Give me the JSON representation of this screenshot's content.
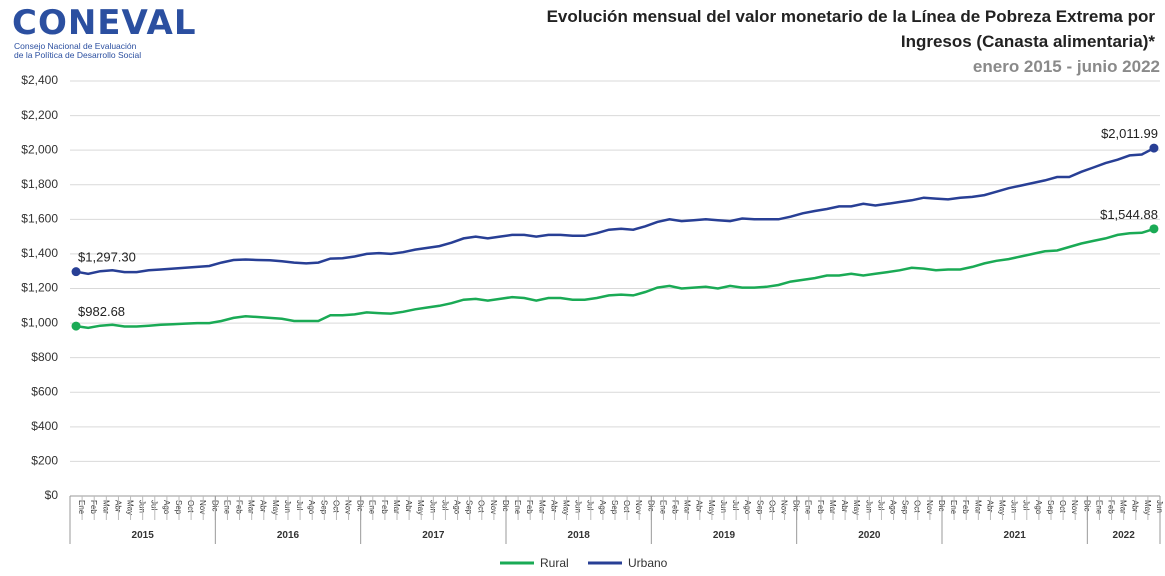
{
  "logo": {
    "name": "CONEVAL",
    "line1": "Consejo Nacional de Evaluación",
    "line2": "de la Política de Desarrollo Social"
  },
  "chart_data": {
    "type": "line",
    "title": "Evolución mensual del valor monetario de la Línea de Pobreza Extrema por",
    "title2": "Ingresos (Canasta alimentaria)*",
    "subtitle": "enero 2015 - junio 2022",
    "categories": [
      "Ene",
      "Feb",
      "Mar",
      "Abr",
      "May",
      "Jun",
      "Jul",
      "Ago",
      "Sep",
      "Oct",
      "Nov",
      "Dic",
      "Ene",
      "Feb",
      "Mar",
      "Abr",
      "May",
      "Jun",
      "Jul",
      "Ago",
      "Sep",
      "Oct",
      "Nov",
      "Dic",
      "Ene",
      "Feb",
      "Mar",
      "Abr",
      "May",
      "Jun",
      "Jul",
      "Ago",
      "Sep",
      "Oct",
      "Nov",
      "Dic",
      "Ene",
      "Feb",
      "Mar",
      "Abr",
      "May",
      "Jun",
      "Jul",
      "Ago",
      "Sep",
      "Oct",
      "Nov",
      "Dic",
      "Ene",
      "Feb",
      "Mar",
      "Abr",
      "May",
      "Jun",
      "Jul",
      "Ago",
      "Sep",
      "Oct",
      "Nov",
      "Dic",
      "Ene",
      "Feb",
      "Mar",
      "Abr",
      "May",
      "Jun",
      "Jul",
      "Ago",
      "Sep",
      "Oct",
      "Nov",
      "Dic",
      "Ene",
      "Feb",
      "Mar",
      "Abr",
      "May",
      "Jun",
      "Jul",
      "Ago",
      "Sep",
      "Oct",
      "Nov",
      "Dic",
      "Ene",
      "Feb",
      "Mar",
      "Abr",
      "May",
      "Jun"
    ],
    "years": [
      "2015",
      "2016",
      "2017",
      "2018",
      "2019",
      "2020",
      "2021",
      "2022"
    ],
    "series": [
      {
        "name": "Rural",
        "color": "#1aaa55",
        "values": [
          982.68,
          972,
          985,
          990,
          980,
          980,
          985,
          990,
          993,
          997,
          1000,
          1000,
          1012,
          1030,
          1040,
          1035,
          1030,
          1025,
          1012,
          1012,
          1012,
          1045,
          1045,
          1050,
          1062,
          1058,
          1055,
          1065,
          1080,
          1090,
          1100,
          1115,
          1135,
          1140,
          1130,
          1140,
          1150,
          1145,
          1130,
          1145,
          1145,
          1135,
          1135,
          1145,
          1160,
          1165,
          1160,
          1180,
          1205,
          1215,
          1200,
          1205,
          1210,
          1200,
          1215,
          1205,
          1205,
          1210,
          1220,
          1240,
          1250,
          1260,
          1275,
          1275,
          1285,
          1275,
          1285,
          1295,
          1305,
          1320,
          1315,
          1305,
          1310,
          1310,
          1325,
          1345,
          1360,
          1370,
          1385,
          1400,
          1415,
          1420,
          1440,
          1460,
          1475,
          1490,
          1510,
          1520,
          1522,
          1544.88
        ],
        "value_labels": [
          "$982.68",
          null,
          null,
          null,
          null,
          null,
          null,
          null,
          null,
          null,
          null,
          null,
          null,
          null,
          null,
          null,
          null,
          null,
          null,
          null,
          null,
          null,
          null,
          null,
          null,
          null,
          null,
          null,
          null,
          null,
          null,
          null,
          null,
          null,
          null,
          null,
          null,
          null,
          null,
          null,
          null,
          null,
          null,
          null,
          null,
          null,
          null,
          null,
          null,
          null,
          null,
          null,
          null,
          null,
          null,
          null,
          null,
          null,
          null,
          null,
          null,
          null,
          null,
          null,
          null,
          null,
          null,
          null,
          null,
          null,
          null,
          null,
          null,
          null,
          null,
          null,
          null,
          null,
          null,
          null,
          null,
          null,
          null,
          null,
          null,
          null,
          null,
          null,
          null,
          "$1,544.88"
        ]
      },
      {
        "name": "Urbano",
        "color": "#283f95",
        "values": [
          1297.3,
          1285,
          1300,
          1305,
          1295,
          1295,
          1305,
          1310,
          1315,
          1320,
          1325,
          1330,
          1350,
          1365,
          1368,
          1365,
          1363,
          1358,
          1350,
          1345,
          1350,
          1373,
          1375,
          1385,
          1400,
          1405,
          1400,
          1410,
          1425,
          1435,
          1445,
          1465,
          1490,
          1500,
          1490,
          1500,
          1510,
          1510,
          1500,
          1510,
          1510,
          1505,
          1505,
          1520,
          1540,
          1545,
          1540,
          1560,
          1585,
          1600,
          1590,
          1595,
          1600,
          1595,
          1590,
          1605,
          1600,
          1600,
          1600,
          1615,
          1635,
          1648,
          1660,
          1675,
          1675,
          1690,
          1680,
          1690,
          1700,
          1710,
          1725,
          1720,
          1715,
          1725,
          1730,
          1740,
          1760,
          1780,
          1795,
          1810,
          1825,
          1845,
          1845,
          1875,
          1900,
          1925,
          1945,
          1970,
          1975,
          2011.99
        ],
        "value_labels": [
          "$1,297.30",
          null,
          null,
          null,
          null,
          null,
          null,
          null,
          null,
          null,
          null,
          null,
          null,
          null,
          null,
          null,
          null,
          null,
          null,
          null,
          null,
          null,
          null,
          null,
          null,
          null,
          null,
          null,
          null,
          null,
          null,
          null,
          null,
          null,
          null,
          null,
          null,
          null,
          null,
          null,
          null,
          null,
          null,
          null,
          null,
          null,
          null,
          null,
          null,
          null,
          null,
          null,
          null,
          null,
          null,
          null,
          null,
          null,
          null,
          null,
          null,
          null,
          null,
          null,
          null,
          null,
          null,
          null,
          null,
          null,
          null,
          null,
          null,
          null,
          null,
          null,
          null,
          null,
          null,
          null,
          null,
          null,
          null,
          null,
          null,
          null,
          null,
          null,
          null,
          "$2,011.99"
        ]
      }
    ],
    "ylim": [
      0,
      2400
    ],
    "yticks": [
      {
        "value": 0,
        "label": "$0"
      },
      {
        "value": 200,
        "label": "$200"
      },
      {
        "value": 400,
        "label": "$400"
      },
      {
        "value": 600,
        "label": "$600"
      },
      {
        "value": 800,
        "label": "$800"
      },
      {
        "value": 1000,
        "label": "$1,000"
      },
      {
        "value": 1200,
        "label": "$1,200"
      },
      {
        "value": 1400,
        "label": "$1,400"
      },
      {
        "value": 1600,
        "label": "$1,600"
      },
      {
        "value": 1800,
        "label": "$1,800"
      },
      {
        "value": 2000,
        "label": "$2,000"
      },
      {
        "value": 2200,
        "label": "$2,200"
      },
      {
        "value": 2400,
        "label": "$2,400"
      }
    ],
    "grid": true,
    "legend": "bottom"
  }
}
